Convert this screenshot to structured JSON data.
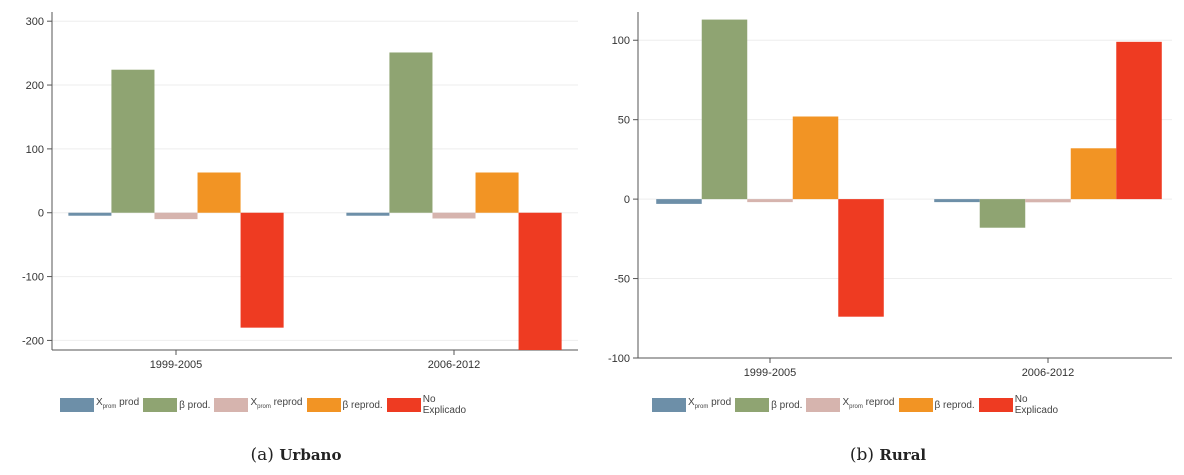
{
  "colors": {
    "x_prod": "#6d8fa8",
    "b_prod": "#8fa472",
    "x_reprod": "#d6b4ae",
    "b_reprod": "#f29424",
    "no_explicado": "#ee3b22",
    "axis": "#555555",
    "grid": "#eeeeee"
  },
  "legend": [
    {
      "key": "x_prod",
      "label": "prod",
      "x_prefix": "X",
      "x_sub": "prom"
    },
    {
      "key": "b_prod",
      "label": "β prod."
    },
    {
      "key": "x_reprod",
      "label": "reprod",
      "x_prefix": "X",
      "x_sub": "prom"
    },
    {
      "key": "b_reprod",
      "label": "β reprod."
    },
    {
      "key": "no_explicado",
      "label": "No\nExplicado"
    }
  ],
  "chart_data": [
    {
      "type": "bar",
      "caption_tag": "(a)",
      "caption_name": "Urbano",
      "categories": [
        "1999-2005",
        "2006-2012"
      ],
      "ylim": [
        -215,
        305
      ],
      "yticks": [
        -200,
        -100,
        0,
        100,
        200,
        300
      ],
      "grid": true,
      "legend_position": "bottom",
      "series": [
        {
          "key": "x_prod",
          "values": [
            -2,
            -1
          ]
        },
        {
          "key": "b_prod",
          "values": [
            224,
            251
          ]
        },
        {
          "key": "x_reprod",
          "values": [
            -10,
            -9
          ]
        },
        {
          "key": "b_reprod",
          "values": [
            63,
            63
          ]
        },
        {
          "key": "no_explicado",
          "values": [
            -180,
            -215
          ]
        }
      ]
    },
    {
      "type": "bar",
      "caption_tag": "(b)",
      "caption_name": "Rural",
      "categories": [
        "1999-2005",
        "2006-2012"
      ],
      "ylim": [
        -100,
        114
      ],
      "yticks": [
        -100,
        -50,
        0,
        50,
        100
      ],
      "grid": true,
      "legend_position": "bottom",
      "series": [
        {
          "key": "x_prod",
          "values": [
            -3,
            -1
          ]
        },
        {
          "key": "b_prod",
          "values": [
            113,
            -18
          ]
        },
        {
          "key": "x_reprod",
          "values": [
            -1,
            -2
          ]
        },
        {
          "key": "b_reprod",
          "values": [
            52,
            32
          ]
        },
        {
          "key": "no_explicado",
          "values": [
            -74,
            99
          ]
        }
      ]
    }
  ]
}
